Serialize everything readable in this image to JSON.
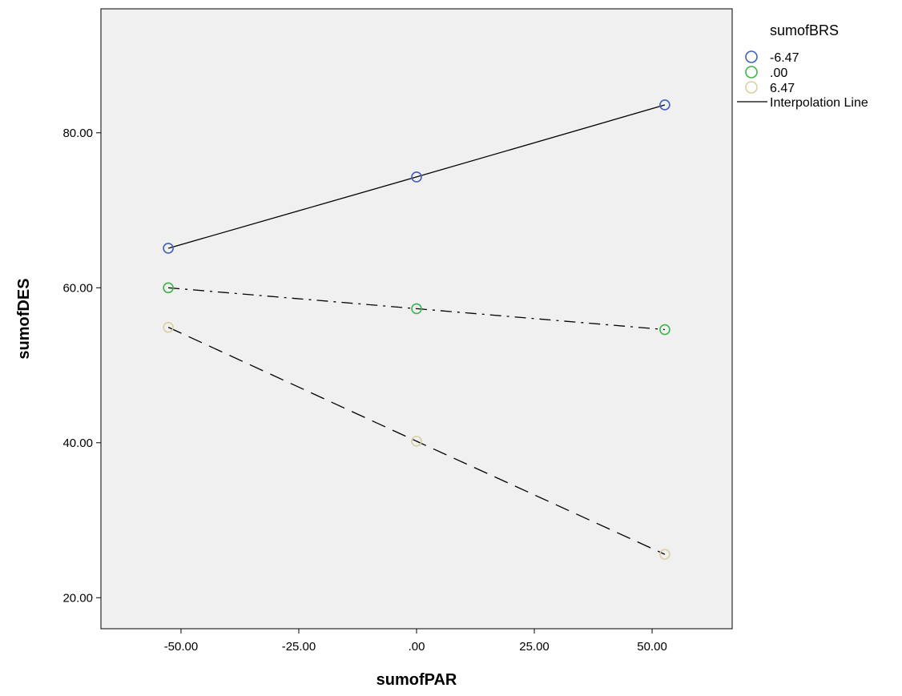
{
  "chart_data": {
    "type": "scatter",
    "title": "",
    "xlabel": "sumofPAR",
    "ylabel": "sumofDES",
    "xlim": [
      -67,
      67
    ],
    "ylim": [
      16,
      96
    ],
    "xticks": [
      -50,
      -25,
      0,
      25,
      50
    ],
    "xtick_labels": [
      "-50.00",
      "-25.00",
      ".00",
      "25.00",
      "50.00"
    ],
    "yticks": [
      20,
      40,
      60,
      80
    ],
    "ytick_labels": [
      "20.00",
      "40.00",
      "60.00",
      "80.00"
    ],
    "grid": false,
    "legend": {
      "placement": "outside-top-right",
      "title": "sumofBRS",
      "line_label": "Interpolation Line"
    },
    "plot_background": "#f0f0f0",
    "series": [
      {
        "name": "-6.47",
        "color": "#3f5fbf",
        "line_style": "solid",
        "points": [
          {
            "x": -52.7,
            "y": 65.1
          },
          {
            "x": 0.0,
            "y": 74.3
          },
          {
            "x": 52.7,
            "y": 83.6
          }
        ]
      },
      {
        "name": ".00",
        "color": "#3cb44b",
        "line_style": "dash-dot",
        "points": [
          {
            "x": -52.7,
            "y": 60.0
          },
          {
            "x": 0.0,
            "y": 57.3
          },
          {
            "x": 52.7,
            "y": 54.6
          }
        ]
      },
      {
        "name": "6.47",
        "color": "#d8d0a0",
        "line_style": "dashed",
        "points": [
          {
            "x": -52.7,
            "y": 54.9
          },
          {
            "x": 0.0,
            "y": 40.2
          },
          {
            "x": 52.7,
            "y": 25.6
          }
        ]
      }
    ]
  }
}
